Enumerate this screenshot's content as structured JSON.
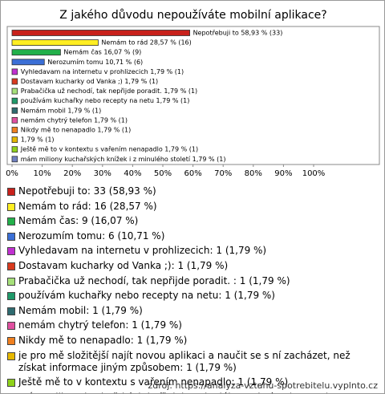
{
  "chart_data": {
    "type": "bar",
    "orientation": "horizontal",
    "title": "Z jakého důvodu nepoužíváte mobilní aplikace?",
    "categories": [
      "Nepotřebuji to: 33 (58,93 %)",
      "Nemám to rád: 16 (28,57 %)",
      "Nemám čas: 9 (16,07 %)",
      "Nerozumím tomu: 6 (10,71 %)",
      "Vyhledavam na internetu v prohlizecich: 1 (1,79 %)",
      "Dostavam kucharky od Vanka ;): 1 (1,79 %)",
      "Prabačička už nechodí, tak nepřijde poradit. : 1 (1,79 %)",
      "používám kuchařky nebo recepty na netu: 1 (1,79 %)",
      "Nemám mobil: 1 (1,79 %)",
      "nemám chytrý telefon: 1 (1,79 %)",
      "Nikdy mě to nenapadlo: 1 (1,79 %)",
      "je pro mě složitější najít novou aplikaci a naučit se s ní zacházet, než získat informace jiným způsobem: 1 (1,79 %)",
      "Ještě mě to v kontextu s vařením nenapadlo: 1 (1,79 %)",
      "mám miliony kuchařských knížek i z minulého století: 1 (1,79 %)"
    ],
    "values": [
      58.93,
      28.57,
      16.07,
      10.71,
      1.79,
      1.79,
      1.79,
      1.79,
      1.79,
      1.79,
      1.79,
      1.79,
      1.79,
      1.79
    ],
    "value_labels": [
      "Nepotřebuji to 58,93 % (33)",
      "Nemám to rád 28,57 % (16)",
      "Nemám čas 16,07 % (9)",
      "Nerozumím tomu 10,71 % (6)",
      "Vyhledavam na internetu v prohlizecich 1,79 % (1)",
      "Dostavam kucharky od Vanka ;) 1,79 % (1)",
      "Prabačička už nechodí, tak nepřijde poradit.  1,79 % (1)",
      "používám kuchařky nebo recepty na netu 1,79 % (1)",
      "Nemám mobil 1,79 % (1)",
      "nemám chytrý telefon 1,79 % (1)",
      "Nikdy mě to nenapadlo 1,79 % (1)",
      "1,79 % (1)",
      "Ještě mě to v kontextu s vařením nenapadlo 1,79 % (1)",
      "mám miliony kuchařských knížek i z minulého století 1,79 % (1)"
    ],
    "colors": [
      "#c8211b",
      "#ffee22",
      "#22b04a",
      "#3b6fd6",
      "#c030d0",
      "#d83a1e",
      "#a6e07a",
      "#1f9a6a",
      "#2f6b70",
      "#e050a0",
      "#f08020",
      "#e6b800",
      "#8fd21a",
      "#7080c0"
    ],
    "xlim": [
      0,
      100
    ],
    "xticks": [
      {
        "value": 0,
        "label": "0%"
      },
      {
        "value": 10,
        "label": "10%"
      },
      {
        "value": 20,
        "label": "20%"
      },
      {
        "value": 30,
        "label": "30%"
      },
      {
        "value": 40,
        "label": "40%"
      },
      {
        "value": 50,
        "label": "50%"
      },
      {
        "value": 60,
        "label": "60%"
      },
      {
        "value": 70,
        "label": "70%"
      },
      {
        "value": 80,
        "label": "80%"
      },
      {
        "value": 90,
        "label": "90%"
      },
      {
        "value": 100,
        "label": "100%"
      }
    ],
    "source": "zdroj: https://analyza-vztahu-spotrebitelu.vyplnto.cz"
  }
}
